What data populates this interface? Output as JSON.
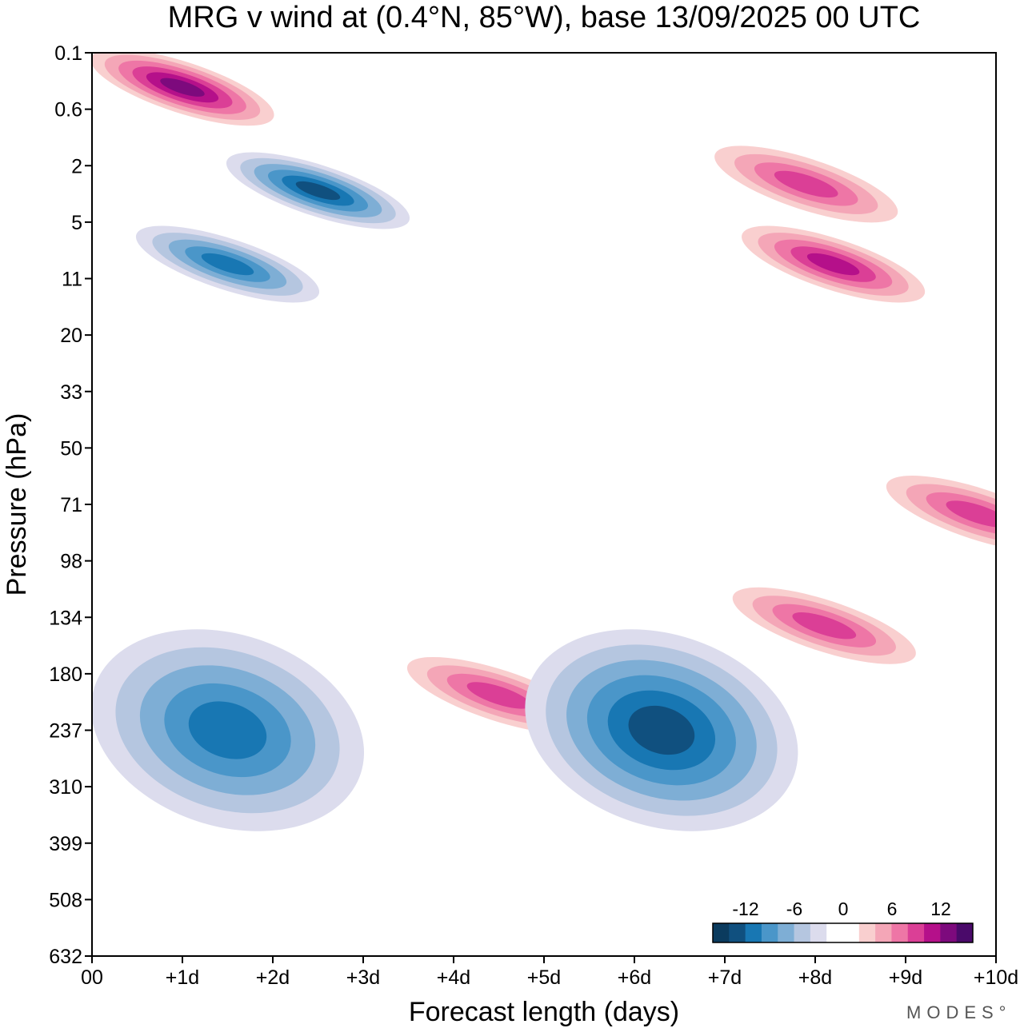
{
  "chart_data": {
    "type": "heatmap",
    "title": "MRG v wind at (0.4°N, 85°W),  base 13/09/2025  00 UTC",
    "xlabel": "Forecast length (days)",
    "ylabel": "Pressure (hPa)",
    "x_ticks": [
      "00",
      "+1d",
      "+2d",
      "+3d",
      "+4d",
      "+5d",
      "+6d",
      "+7d",
      "+8d",
      "+9d",
      "+10d"
    ],
    "xlim": [
      0,
      10
    ],
    "y_ticks": [
      "0.1",
      "0.6",
      "2",
      "5",
      "11",
      "20",
      "33",
      "50",
      "71",
      "98",
      "134",
      "180",
      "237",
      "310",
      "399",
      "508",
      "632"
    ],
    "y_axis": "pressure, increasing downward",
    "colorbar": {
      "tick_labels": [
        "-12",
        "-6",
        "0",
        "6",
        "12"
      ],
      "colors": [
        "#0b3b5e",
        "#10507f",
        "#1877b3",
        "#4a96c9",
        "#7eaed5",
        "#b5c6e0",
        "#dcdced",
        "#ffffff",
        "#ffffff",
        "#f9cfcf",
        "#f4a6b7",
        "#ee76a6",
        "#db3f96",
        "#b5108a",
        "#7d0a7d",
        "#4a0a6a"
      ]
    },
    "features": [
      {
        "sign": "negative",
        "x_day": 1.5,
        "pressure_hPa": 237,
        "peak": -10
      },
      {
        "sign": "positive",
        "x_day": 4.5,
        "pressure_hPa": 200,
        "peak": 8
      },
      {
        "sign": "negative",
        "x_day": 6.3,
        "pressure_hPa": 237,
        "peak": -12
      },
      {
        "sign": "positive",
        "x_day": 8.1,
        "pressure_hPa": 140,
        "peak": 8
      },
      {
        "sign": "negative",
        "x_day": 2.5,
        "pressure_hPa": 3,
        "peak": -12
      },
      {
        "sign": "negative",
        "x_day": 1.5,
        "pressure_hPa": 9,
        "peak": -10
      },
      {
        "sign": "positive",
        "x_day": 8.2,
        "pressure_hPa": 9,
        "peak": 10
      },
      {
        "sign": "positive",
        "x_day": 1.0,
        "pressure_hPa": 0.3,
        "peak": 12
      },
      {
        "sign": "positive",
        "x_day": 7.9,
        "pressure_hPa": 2.7,
        "peak": 8
      },
      {
        "sign": "positive",
        "x_day": 9.8,
        "pressure_hPa": 75,
        "peak": 8
      }
    ]
  },
  "brand": {
    "text": "MODES°"
  }
}
